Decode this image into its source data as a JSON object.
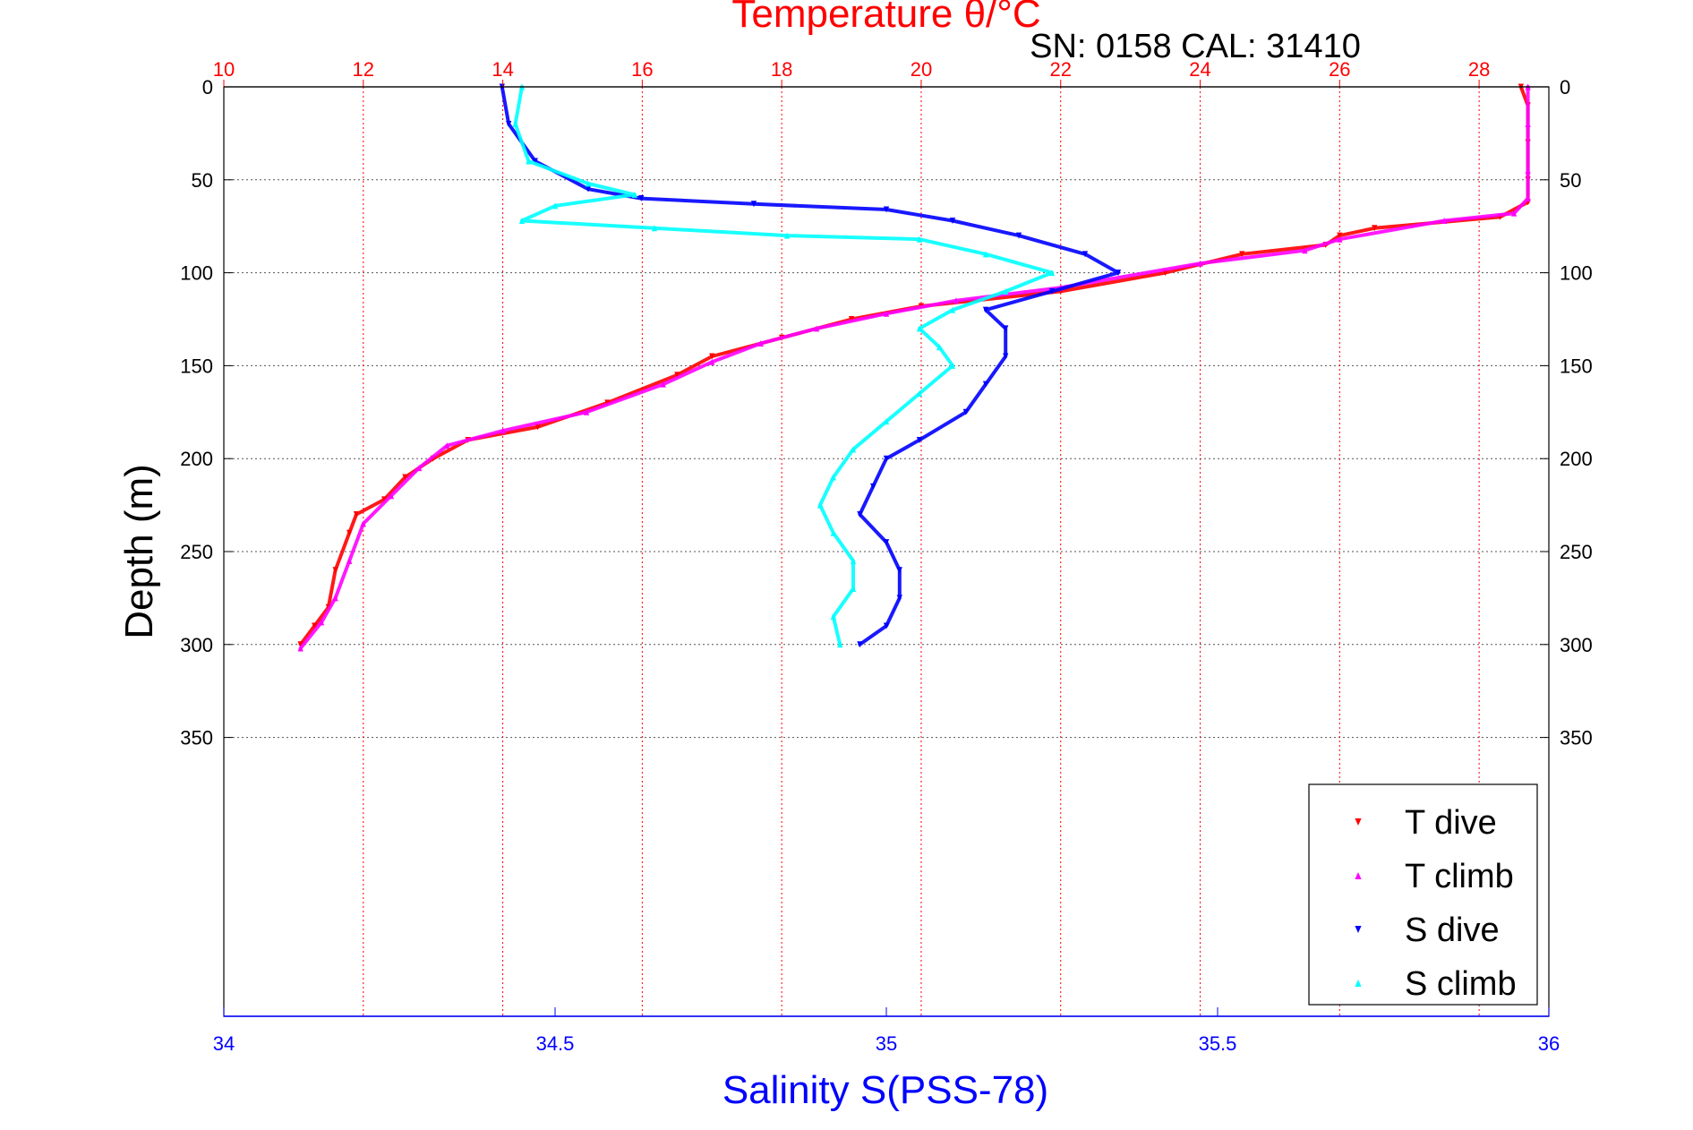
{
  "chart_data": {
    "type": "scatter",
    "title": "Temperature θ/°C",
    "subtitle": "SN: 0158  CAL: 31410",
    "ylabel": "Depth (m)",
    "xlabel_bottom": "Salinity S(PSS-78)",
    "xlabel_top": "Temperature θ/°C",
    "y_axis": {
      "reversed": true,
      "range": [
        0,
        500
      ],
      "ticks": [
        0,
        50,
        100,
        150,
        200,
        250,
        300,
        350
      ]
    },
    "x_bottom": {
      "quantity": "salinity",
      "range": [
        34,
        36
      ],
      "ticks": [
        34,
        34.5,
        35,
        35.5,
        36
      ]
    },
    "x_top": {
      "quantity": "temperature",
      "range": [
        10,
        29
      ],
      "ticks": [
        10,
        12,
        14,
        16,
        18,
        20,
        22,
        24,
        26,
        28
      ]
    },
    "grid": true,
    "legend_position": "bottom-right",
    "series": [
      {
        "name": "T dive",
        "axis": "top",
        "color": "#ff0000",
        "marker": "triangle-down",
        "points": [
          [
            28.6,
            0
          ],
          [
            28.7,
            10
          ],
          [
            28.7,
            30
          ],
          [
            28.7,
            50
          ],
          [
            28.7,
            62
          ],
          [
            28.3,
            70
          ],
          [
            26.5,
            76
          ],
          [
            26.0,
            80
          ],
          [
            25.8,
            85
          ],
          [
            24.6,
            90
          ],
          [
            23.5,
            100
          ],
          [
            22.0,
            110
          ],
          [
            20.0,
            118
          ],
          [
            19.0,
            125
          ],
          [
            18.0,
            135
          ],
          [
            17.0,
            145
          ],
          [
            16.5,
            155
          ],
          [
            15.5,
            170
          ],
          [
            14.5,
            183
          ],
          [
            13.5,
            190
          ],
          [
            13.0,
            200
          ],
          [
            12.6,
            210
          ],
          [
            12.3,
            222
          ],
          [
            11.9,
            230
          ],
          [
            11.8,
            240
          ],
          [
            11.6,
            260
          ],
          [
            11.5,
            280
          ],
          [
            11.3,
            290
          ],
          [
            11.1,
            300
          ]
        ]
      },
      {
        "name": "T climb",
        "axis": "top",
        "color": "#ff00ff",
        "marker": "triangle-up",
        "points": [
          [
            28.7,
            0
          ],
          [
            28.7,
            20
          ],
          [
            28.7,
            45
          ],
          [
            28.7,
            60
          ],
          [
            28.5,
            68
          ],
          [
            27.5,
            72
          ],
          [
            26.0,
            82
          ],
          [
            25.5,
            88
          ],
          [
            24.0,
            95
          ],
          [
            22.0,
            108
          ],
          [
            20.5,
            115
          ],
          [
            19.5,
            122
          ],
          [
            18.5,
            130
          ],
          [
            17.7,
            138
          ],
          [
            17.0,
            148
          ],
          [
            16.3,
            160
          ],
          [
            15.2,
            175
          ],
          [
            14.0,
            185
          ],
          [
            13.2,
            193
          ],
          [
            12.8,
            205
          ],
          [
            12.4,
            220
          ],
          [
            12.0,
            235
          ],
          [
            11.8,
            255
          ],
          [
            11.6,
            275
          ],
          [
            11.4,
            288
          ],
          [
            11.1,
            302
          ]
        ]
      },
      {
        "name": "S dive",
        "axis": "bottom",
        "color": "#0000ff",
        "marker": "triangle-down",
        "points": [
          [
            34.42,
            0
          ],
          [
            34.43,
            20
          ],
          [
            34.47,
            40
          ],
          [
            34.55,
            55
          ],
          [
            34.63,
            60
          ],
          [
            34.8,
            63
          ],
          [
            35.0,
            66
          ],
          [
            35.1,
            72
          ],
          [
            35.2,
            80
          ],
          [
            35.3,
            90
          ],
          [
            35.35,
            100
          ],
          [
            35.25,
            110
          ],
          [
            35.15,
            120
          ],
          [
            35.18,
            130
          ],
          [
            35.18,
            145
          ],
          [
            35.15,
            160
          ],
          [
            35.12,
            175
          ],
          [
            35.05,
            190
          ],
          [
            35.0,
            200
          ],
          [
            34.98,
            215
          ],
          [
            34.96,
            230
          ],
          [
            35.0,
            245
          ],
          [
            35.02,
            260
          ],
          [
            35.02,
            275
          ],
          [
            35.0,
            290
          ],
          [
            34.96,
            300
          ]
        ]
      },
      {
        "name": "S climb",
        "axis": "bottom",
        "color": "#00ffff",
        "marker": "triangle-up",
        "points": [
          [
            34.45,
            0
          ],
          [
            34.44,
            20
          ],
          [
            34.46,
            40
          ],
          [
            34.55,
            52
          ],
          [
            34.62,
            58
          ],
          [
            34.5,
            64
          ],
          [
            34.45,
            72
          ],
          [
            34.65,
            76
          ],
          [
            34.85,
            80
          ],
          [
            35.05,
            82
          ],
          [
            35.15,
            90
          ],
          [
            35.25,
            100
          ],
          [
            35.18,
            110
          ],
          [
            35.1,
            120
          ],
          [
            35.05,
            130
          ],
          [
            35.08,
            140
          ],
          [
            35.1,
            150
          ],
          [
            35.05,
            165
          ],
          [
            35.0,
            180
          ],
          [
            34.95,
            195
          ],
          [
            34.92,
            210
          ],
          [
            34.9,
            225
          ],
          [
            34.92,
            240
          ],
          [
            34.95,
            255
          ],
          [
            34.95,
            270
          ],
          [
            34.92,
            285
          ],
          [
            34.93,
            300
          ]
        ]
      }
    ]
  }
}
